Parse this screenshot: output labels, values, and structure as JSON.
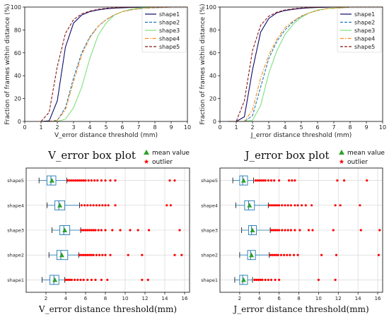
{
  "chart_data": [
    {
      "type": "line",
      "xlabel": "V_error distance threshold (mm)",
      "ylabel": "Fraction of frames within distance (%)",
      "xlim": [
        0,
        10
      ],
      "ylim": [
        0,
        100
      ],
      "xticks": [
        "0",
        "1",
        "2",
        "3",
        "4",
        "5",
        "6",
        "7",
        "8",
        "9",
        "10"
      ],
      "yticks": [
        "0",
        "20",
        "40",
        "60",
        "80",
        "100"
      ],
      "legend_position": "top-right",
      "grid": false,
      "x": [
        1.0,
        1.5,
        2.0,
        2.5,
        3.0,
        3.5,
        4.0,
        4.5,
        5.0,
        5.5,
        6.0,
        6.5,
        7.0,
        7.5,
        8.0,
        9.0,
        10.0
      ],
      "series": [
        {
          "name": "shape1",
          "color": "#0b0b6e",
          "dash": "solid",
          "values": [
            0,
            0.5,
            18,
            65,
            86,
            93,
            96,
            97.5,
            98.5,
            99,
            99.3,
            99.6,
            99.8,
            99.9,
            100,
            100,
            100
          ]
        },
        {
          "name": "shape2",
          "color": "#1f77b4",
          "dash": "dashed",
          "values": [
            0,
            0,
            1,
            12,
            38,
            60,
            74,
            83,
            89,
            93,
            96,
            97.5,
            98.5,
            99,
            99.5,
            100,
            100
          ]
        },
        {
          "name": "shape3",
          "color": "#7fe07f",
          "dash": "solid",
          "values": [
            0,
            0,
            0,
            2,
            12,
            30,
            55,
            75,
            86,
            93,
            96,
            98,
            99,
            99.5,
            100,
            100,
            100
          ]
        },
        {
          "name": "shape4",
          "color": "#ff8c1a",
          "dash": "dashdot",
          "values": [
            0,
            0,
            1,
            10,
            35,
            58,
            73,
            83,
            89,
            93,
            96,
            97.5,
            98.5,
            99,
            99.5,
            100,
            100
          ]
        },
        {
          "name": "shape5",
          "color": "#8b1a1a",
          "dash": "dashed",
          "values": [
            0,
            8,
            48,
            77,
            89,
            94,
            96.5,
            98,
            99,
            99.3,
            99.6,
            99.8,
            100,
            100,
            100,
            100,
            100
          ]
        }
      ]
    },
    {
      "type": "line",
      "xlabel": "J_error distance threshold (mm)",
      "ylabel": "Fraction of frames within distance (%)",
      "xlim": [
        0,
        10
      ],
      "ylim": [
        0,
        100
      ],
      "xticks": [
        "0",
        "1",
        "2",
        "3",
        "4",
        "5",
        "6",
        "7",
        "8",
        "9",
        "10"
      ],
      "yticks": [
        "0",
        "20",
        "40",
        "60",
        "80",
        "100"
      ],
      "legend_position": "top-right",
      "grid": false,
      "x": [
        0.5,
        1.0,
        1.5,
        2.0,
        2.5,
        3.0,
        3.5,
        4.0,
        4.5,
        5.0,
        5.5,
        6.0,
        6.5,
        7.0,
        7.5,
        8.0,
        9.0,
        10.0
      ],
      "series": [
        {
          "name": "shape1",
          "color": "#0b0b6e",
          "dash": "solid",
          "values": [
            0,
            0,
            4,
            45,
            78,
            90,
            95,
            97,
            98,
            98.8,
            99.3,
            99.6,
            99.8,
            100,
            100,
            100,
            100,
            100
          ]
        },
        {
          "name": "shape2",
          "color": "#1f77b4",
          "dash": "dashed",
          "values": [
            0,
            0,
            0,
            5,
            30,
            55,
            70,
            80,
            87,
            92,
            95,
            97,
            98.5,
            99,
            99.5,
            100,
            100,
            100
          ]
        },
        {
          "name": "shape3",
          "color": "#7fe07f",
          "dash": "solid",
          "values": [
            0,
            0,
            0,
            1,
            14,
            42,
            62,
            76,
            85,
            91,
            95,
            97.5,
            98.5,
            99,
            99.5,
            100,
            100,
            100
          ]
        },
        {
          "name": "shape4",
          "color": "#ff8c1a",
          "dash": "dashdot",
          "values": [
            0,
            0,
            0,
            10,
            38,
            58,
            72,
            82,
            88,
            92,
            95,
            97,
            98.5,
            99,
            99.5,
            100,
            100,
            100
          ]
        },
        {
          "name": "shape5",
          "color": "#8b1a1a",
          "dash": "dashed",
          "values": [
            0,
            0,
            18,
            62,
            84,
            92,
            95.5,
            97.5,
            98.5,
            99.2,
            99.5,
            99.8,
            100,
            100,
            100,
            100,
            100,
            100
          ]
        }
      ]
    },
    {
      "type": "box",
      "title": "V_error box plot",
      "xlabel": "V_error distance threshold(mm)",
      "xlim": [
        0,
        16.5
      ],
      "xticks": [
        "2",
        "4",
        "6",
        "8",
        "10",
        "12",
        "14",
        "16"
      ],
      "grid": true,
      "legend": [
        {
          "label": "mean value",
          "marker": "triangle",
          "color": "#2ca02c"
        },
        {
          "label": "outlier",
          "marker": "star",
          "color": "#ff0000"
        }
      ],
      "boxes": [
        {
          "label": "shape5",
          "whislo": 1.3,
          "q1": 2.1,
          "median": 2.5,
          "q3": 3.0,
          "whishi": 4.1,
          "mean": 2.6,
          "outliers": [
            4.2,
            4.4,
            4.6,
            4.8,
            5.0,
            5.2,
            5.4,
            5.6,
            5.8,
            6.0,
            6.3,
            6.6,
            6.9,
            7.2,
            7.6,
            8.0,
            8.5,
            9.0,
            14.5,
            15.0
          ]
        },
        {
          "label": "shape4",
          "whislo": 2.1,
          "q1": 2.9,
          "median": 3.3,
          "q3": 3.9,
          "whishi": 5.4,
          "mean": 3.4,
          "outliers": [
            5.6,
            5.9,
            6.2,
            6.5,
            6.8,
            7.1,
            7.4,
            7.7,
            8.0,
            8.3,
            9.0,
            14.2,
            14.6
          ]
        },
        {
          "label": "shape3",
          "whislo": 2.6,
          "q1": 3.4,
          "median": 3.8,
          "q3": 4.4,
          "whishi": 5.5,
          "mean": 3.9,
          "outliers": [
            5.6,
            5.8,
            6.0,
            6.2,
            6.4,
            6.6,
            6.8,
            7.0,
            7.3,
            7.6,
            8.0,
            8.7,
            9.5,
            10.5,
            11.3,
            12.4,
            15.5
          ]
        },
        {
          "label": "shape2",
          "whislo": 2.3,
          "q1": 3.1,
          "median": 3.5,
          "q3": 4.2,
          "whishi": 5.3,
          "mean": 3.6,
          "outliers": [
            5.4,
            5.6,
            5.8,
            6.0,
            6.2,
            6.4,
            6.6,
            6.8,
            7.1,
            7.4,
            7.7,
            8.0,
            8.5,
            10.3,
            11.7,
            15.0,
            15.7
          ]
        },
        {
          "label": "shape1",
          "whislo": 1.6,
          "q1": 2.4,
          "median": 2.8,
          "q3": 3.3,
          "whishi": 3.9,
          "mean": 2.9,
          "outliers": [
            4.0,
            4.2,
            4.4,
            4.6,
            4.9,
            5.2,
            5.5,
            5.8,
            6.2,
            6.6,
            7.0,
            7.6,
            8.2,
            11.7,
            12.3
          ]
        }
      ]
    },
    {
      "type": "box",
      "title": "J_error box plot",
      "xlabel": "J_error distance threshold(mm)",
      "xlim": [
        0,
        16.5
      ],
      "xticks": [
        "2",
        "4",
        "6",
        "8",
        "10",
        "12",
        "14",
        "16"
      ],
      "grid": true,
      "legend": [
        {
          "label": "mean value",
          "marker": "triangle",
          "color": "#2ca02c"
        },
        {
          "label": "outlier",
          "marker": "star",
          "color": "#ff0000"
        }
      ],
      "boxes": [
        {
          "label": "shape5",
          "whislo": 1.3,
          "q1": 2.0,
          "median": 2.3,
          "q3": 2.8,
          "whishi": 3.4,
          "mean": 2.4,
          "outliers": [
            3.6,
            3.8,
            4.0,
            4.2,
            4.4,
            4.6,
            4.9,
            5.2,
            5.5,
            6.0,
            7.0,
            7.3,
            7.6,
            11.9,
            12.6,
            14.9
          ]
        },
        {
          "label": "shape4",
          "whislo": 1.6,
          "q1": 2.5,
          "median": 2.9,
          "q3": 3.5,
          "whishi": 4.9,
          "mean": 3.0,
          "outliers": [
            5.0,
            5.2,
            5.4,
            5.6,
            5.8,
            6.0,
            6.3,
            6.6,
            6.9,
            7.2,
            7.6,
            7.9,
            8.3,
            8.7,
            9.3,
            11.7,
            12.2,
            14.2
          ]
        },
        {
          "label": "shape3",
          "whislo": 2.2,
          "q1": 2.9,
          "median": 3.2,
          "q3": 3.7,
          "whishi": 5.1,
          "mean": 3.3,
          "outliers": [
            5.2,
            5.4,
            5.6,
            5.8,
            6.0,
            6.3,
            6.6,
            6.9,
            7.2,
            7.6,
            8.1,
            9.0,
            9.4,
            11.5,
            14.3,
            16.2
          ]
        },
        {
          "label": "shape2",
          "whislo": 2.0,
          "q1": 2.8,
          "median": 3.1,
          "q3": 3.6,
          "whishi": 5.0,
          "mean": 3.2,
          "outliers": [
            5.1,
            5.3,
            5.5,
            5.7,
            5.9,
            6.2,
            6.5,
            6.8,
            7.1,
            7.5,
            7.9,
            10.3,
            11.8,
            16.1
          ]
        },
        {
          "label": "shape1",
          "whislo": 1.5,
          "q1": 2.0,
          "median": 2.3,
          "q3": 2.8,
          "whishi": 3.3,
          "mean": 2.4,
          "outliers": [
            3.5,
            3.7,
            3.9,
            4.1,
            4.3,
            4.6,
            4.9,
            5.2,
            5.6,
            6.0,
            10.0,
            11.7
          ]
        }
      ]
    }
  ]
}
